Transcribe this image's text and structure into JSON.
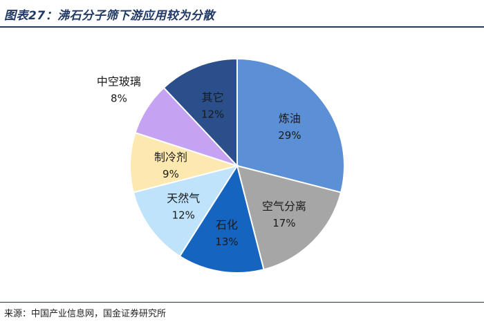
{
  "header": {
    "title": "图表27：沸石分子筛下游应用较为分散"
  },
  "chart_data": {
    "type": "pie",
    "title": "",
    "slices": [
      {
        "label": "炼油",
        "value": 29,
        "value_label": "29%",
        "color": "#5b8fd6",
        "text_color": "#1a1a1a",
        "label_outside": false
      },
      {
        "label": "空气分离",
        "value": 17,
        "value_label": "17%",
        "color": "#a6a6a6",
        "text_color": "#1a1a1a",
        "label_outside": false
      },
      {
        "label": "石化",
        "value": 13,
        "value_label": "13%",
        "color": "#1565c0",
        "text_color": "#1a1a1a",
        "label_outside": false
      },
      {
        "label": "天然气",
        "value": 12,
        "value_label": "12%",
        "color": "#bfe3fb",
        "text_color": "#1a1a1a",
        "label_outside": false
      },
      {
        "label": "制冷剂",
        "value": 9,
        "value_label": "9%",
        "color": "#fde9b0",
        "text_color": "#1a1a1a",
        "label_outside": false
      },
      {
        "label": "中空玻璃",
        "value": 8,
        "value_label": "8%",
        "color": "#c5a2f2",
        "text_color": "#1a1a1a",
        "label_outside": true
      },
      {
        "label": "其它",
        "value": 12,
        "value_label": "12%",
        "color": "#2a4f8a",
        "text_color": "#1a1a1a",
        "label_outside": false
      }
    ]
  },
  "footer": {
    "source": "来源：中国产业信息网，国金证券研究所"
  }
}
